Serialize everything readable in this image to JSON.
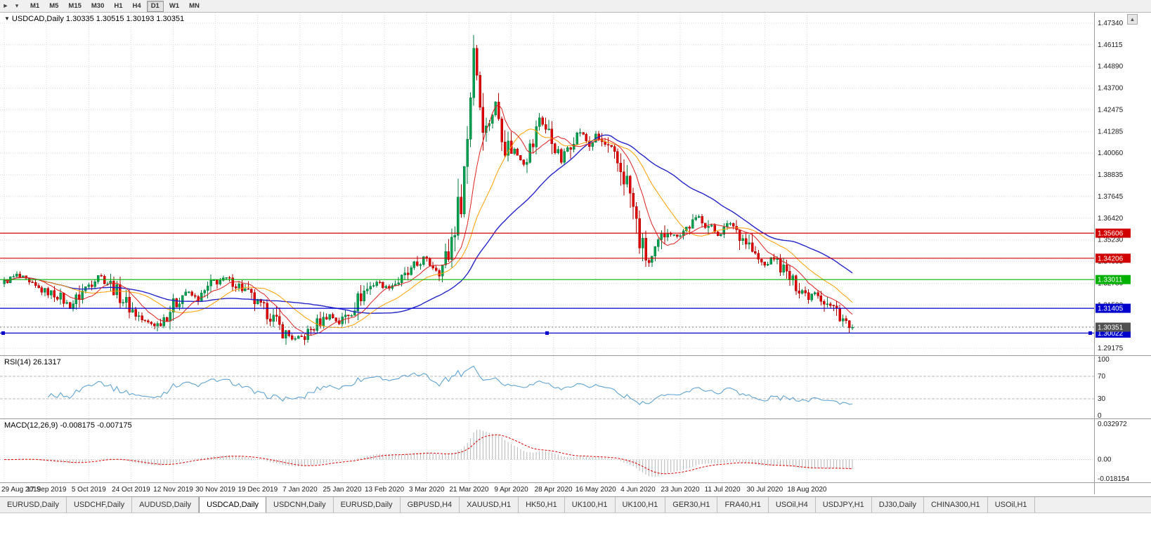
{
  "toolbar": {
    "timeframes": [
      "M1",
      "M5",
      "M15",
      "M30",
      "H1",
      "H4",
      "D1",
      "W1",
      "MN"
    ],
    "active": "D1",
    "icons": {
      "cursor": "►",
      "dropdown": "▾"
    }
  },
  "scroll_button": {
    "glyph": "▲"
  },
  "chart": {
    "symbol_marker": "▼",
    "title_line": "USDCAD,Daily 1.30335 1.30515 1.30193 1.30351",
    "last_candle": {
      "open": 1.30335,
      "high": 1.30515,
      "low": 1.30193,
      "close": 1.30351
    },
    "price_ticks": [
      "1.47340",
      "1.46115",
      "1.44890",
      "1.43700",
      "1.42475",
      "1.41285",
      "1.40060",
      "1.38835",
      "1.37645",
      "1.36420",
      "1.35230",
      "1.34005",
      "1.32780",
      "1.31590",
      "1.30365",
      "1.29175"
    ],
    "dates": [
      "29 Aug 2019",
      "17 Sep 2019",
      "5 Oct 2019",
      "24 Oct 2019",
      "12 Nov 2019",
      "30 Nov 2019",
      "19 Dec 2019",
      "7 Jan 2020",
      "25 Jan 2020",
      "13 Feb 2020",
      "3 Mar 2020",
      "21 Mar 2020",
      "9 Apr 2020",
      "28 Apr 2020",
      "16 May 2020",
      "4 Jun 2020",
      "23 Jun 2020",
      "11 Jul 2020",
      "30 Jul 2020",
      "18 Aug 2020"
    ],
    "levels": [
      {
        "price": 1.35606,
        "label": "1.35606",
        "color": "#d00000"
      },
      {
        "price": 1.34206,
        "label": "1.34206",
        "color": "#d00000"
      },
      {
        "price": 1.33011,
        "label": "1.33011",
        "color": "#00b000"
      },
      {
        "price": 1.31405,
        "label": "1.31405",
        "color": "#0000cc"
      },
      {
        "price": 1.30022,
        "label": "1.30022",
        "color": "#0000cc",
        "selected": true
      }
    ],
    "current_price": {
      "price": 1.30351,
      "label": "1.30351",
      "color": "#505050"
    },
    "peak": {
      "index": 150,
      "high": 1.4668
    },
    "price_path_anchors": [
      [
        0,
        1.329
      ],
      [
        4,
        1.3325
      ],
      [
        8,
        1.327
      ],
      [
        13,
        1.3235
      ],
      [
        17,
        1.3215
      ],
      [
        21,
        1.315
      ],
      [
        25,
        1.3235
      ],
      [
        30,
        1.333
      ],
      [
        34,
        1.3275
      ],
      [
        38,
        1.319
      ],
      [
        41,
        1.313
      ],
      [
        45,
        1.306
      ],
      [
        49,
        1.305
      ],
      [
        54,
        1.3155
      ],
      [
        58,
        1.3235
      ],
      [
        62,
        1.319
      ],
      [
        67,
        1.329
      ],
      [
        71,
        1.3305
      ],
      [
        76,
        1.3255
      ],
      [
        81,
        1.316
      ],
      [
        85,
        1.3105
      ],
      [
        89,
        1.301
      ],
      [
        93,
        1.2965
      ],
      [
        96,
        1.2985
      ],
      [
        100,
        1.3055
      ],
      [
        104,
        1.3105
      ],
      [
        107,
        1.306
      ],
      [
        111,
        1.314
      ],
      [
        115,
        1.3235
      ],
      [
        119,
        1.329
      ],
      [
        122,
        1.3255
      ],
      [
        126,
        1.329
      ],
      [
        130,
        1.3345
      ],
      [
        134,
        1.342
      ],
      [
        136,
        1.339
      ],
      [
        139,
        1.3345
      ],
      [
        142,
        1.3445
      ],
      [
        144,
        1.362
      ],
      [
        146,
        1.376
      ],
      [
        148,
        1.409
      ],
      [
        150,
        1.462
      ],
      [
        152,
        1.428
      ],
      [
        154,
        1.414
      ],
      [
        157,
        1.428
      ],
      [
        160,
        1.406
      ],
      [
        163,
        1.402
      ],
      [
        166,
        1.396
      ],
      [
        169,
        1.406
      ],
      [
        171,
        1.421
      ],
      [
        173,
        1.414
      ],
      [
        176,
        1.405
      ],
      [
        178,
        1.396
      ],
      [
        181,
        1.408
      ],
      [
        184,
        1.413
      ],
      [
        187,
        1.405
      ],
      [
        189,
        1.41
      ],
      [
        192,
        1.405
      ],
      [
        195,
        1.3975
      ],
      [
        198,
        1.389
      ],
      [
        200,
        1.378
      ],
      [
        202,
        1.36
      ],
      [
        204,
        1.346
      ],
      [
        206,
        1.3395
      ],
      [
        208,
        1.3445
      ],
      [
        210,
        1.353
      ],
      [
        212,
        1.3585
      ],
      [
        214,
        1.3545
      ],
      [
        216,
        1.356
      ],
      [
        219,
        1.3605
      ],
      [
        222,
        1.365
      ],
      [
        225,
        1.36
      ],
      [
        228,
        1.3555
      ],
      [
        230,
        1.3585
      ],
      [
        232,
        1.362
      ],
      [
        235,
        1.356
      ],
      [
        238,
        1.3495
      ],
      [
        240,
        1.3425
      ],
      [
        243,
        1.338
      ],
      [
        246,
        1.3425
      ],
      [
        249,
        1.335
      ],
      [
        252,
        1.3285
      ],
      [
        255,
        1.3245
      ],
      [
        257,
        1.3205
      ],
      [
        259,
        1.3245
      ],
      [
        262,
        1.318
      ],
      [
        264,
        1.315
      ],
      [
        266,
        1.313
      ],
      [
        268,
        1.3085
      ],
      [
        270,
        1.30335
      ],
      [
        271,
        1.30351
      ]
    ],
    "colors": {
      "up": "#00a050",
      "up_stroke": "#007a3c",
      "down": "#e00000",
      "down_stroke": "#aa0000",
      "ma_fast": "#e02020",
      "ma_mid": "#ff9f00",
      "ma_slow": "#2424c8",
      "grid": "#d8d8d8"
    }
  },
  "rsi": {
    "label_line": "RSI(14) 26.1317",
    "value": "26.1317",
    "scale": [
      "100",
      "70",
      "30",
      "0"
    ],
    "color": "#61a3d2"
  },
  "macd": {
    "label_line": "MACD(12,26,9) -0.008175 -0.007175",
    "values": [
      "-0.008175",
      "-0.007175"
    ],
    "ticks": [
      "0.032972",
      "0.00",
      "-0.018154"
    ],
    "hist_color": "#b4b4b4",
    "signal_color": "#dd0000"
  },
  "tabs": {
    "items": [
      "EURUSD,Daily",
      "USDCHF,Daily",
      "AUDUSD,Daily",
      "USDCAD,Daily",
      "USDCNH,Daily",
      "EURUSD,Daily",
      "GBPUSD,H4",
      "XAUUSD,H1",
      "HK50,H1",
      "UK100,H1",
      "UK100,H1",
      "GER30,H1",
      "FRA40,H1",
      "USOil,H4",
      "USDJPY,H1",
      "DJ30,Daily",
      "CHINA300,H1",
      "USOil,H1"
    ],
    "active_index": 3
  }
}
